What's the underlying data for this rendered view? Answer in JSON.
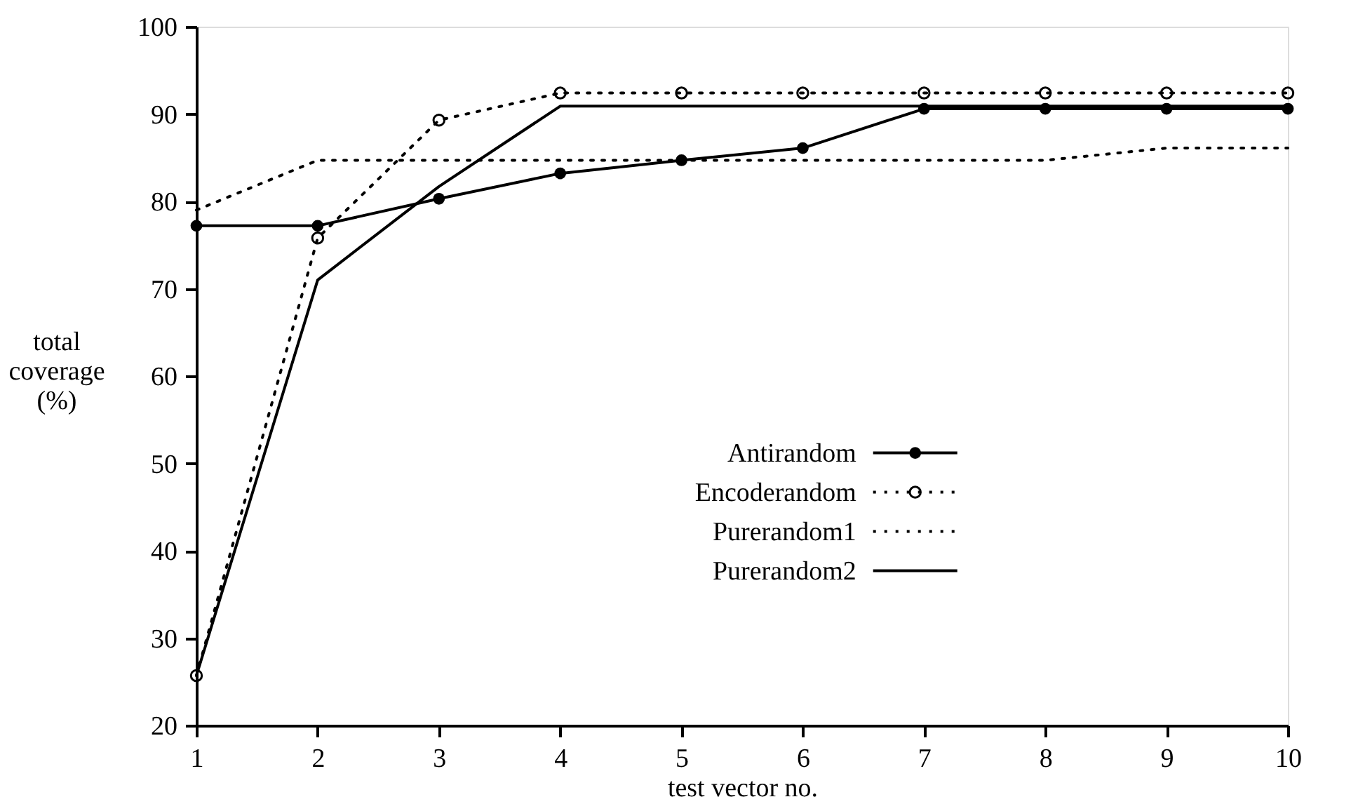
{
  "chart_data": {
    "type": "line",
    "xlabel": "test vector no.",
    "ylabel": "total coverage (%)",
    "x": [
      1,
      2,
      3,
      4,
      5,
      6,
      7,
      8,
      9,
      10
    ],
    "xlim": [
      1,
      10
    ],
    "xticks": [
      1,
      2,
      3,
      4,
      5,
      6,
      7,
      8,
      9,
      10
    ],
    "ylim": [
      20,
      100
    ],
    "yticks": [
      20,
      30,
      40,
      50,
      60,
      70,
      80,
      90,
      100
    ],
    "grid": false,
    "legend": "center",
    "series": [
      {
        "name": "Antirandom",
        "color": "#000000",
        "marker": "circle",
        "line_style": "solid",
        "values": [
          77.2,
          77.2,
          80.3,
          83.2,
          84.7,
          86.1,
          90.6,
          90.6,
          90.6,
          90.6
        ]
      },
      {
        "name": "Encoderandom",
        "color": "#000000",
        "marker": "circle",
        "line_style": "dotted",
        "values": [
          25.7,
          75.8,
          89.3,
          92.4,
          92.4,
          92.4,
          92.4,
          92.4,
          92.4,
          92.4
        ]
      },
      {
        "name": "Purerandom1",
        "color": "#000000",
        "marker": "none",
        "line_style": "dotted",
        "values": [
          79,
          84.7,
          84.7,
          84.7,
          84.7,
          84.7,
          84.7,
          84.7,
          86.1,
          86.1
        ]
      },
      {
        "name": "Purerandom2",
        "color": "#000000",
        "marker": "none",
        "line_style": "solid",
        "values": [
          25.7,
          71.0,
          81.7,
          90.9,
          90.9,
          90.9,
          90.9,
          90.9,
          90.9,
          90.9
        ]
      }
    ]
  }
}
